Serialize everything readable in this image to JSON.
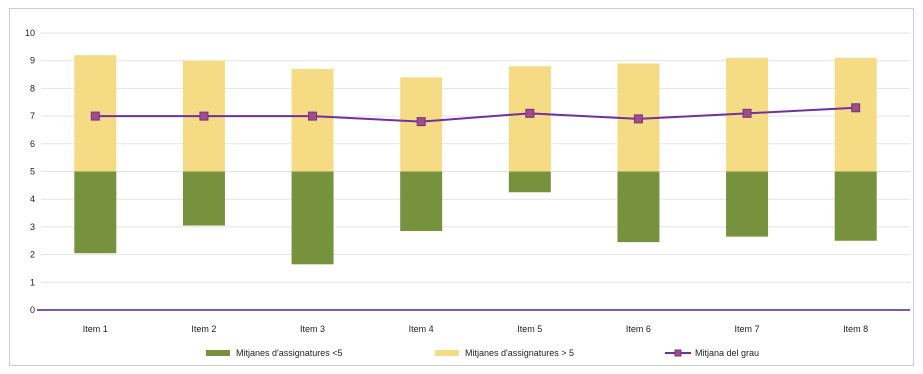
{
  "chart_data": {
    "type": "bar",
    "categories": [
      "Item 1",
      "Item 2",
      "Item 3",
      "Item 4",
      "Item 5",
      "Item 6",
      "Item 7",
      "Item 8"
    ],
    "series": [
      {
        "name": "Mitjanes d'assignatures <5",
        "kind": "floating-bar",
        "low": [
          2.05,
          3.05,
          1.65,
          2.85,
          4.25,
          2.45,
          2.65,
          2.5
        ],
        "high": [
          5,
          5,
          5,
          5,
          5,
          5,
          5,
          5
        ]
      },
      {
        "name": "Mitjanes d'assignatures > 5",
        "kind": "floating-bar",
        "low": [
          5,
          5,
          5,
          5,
          5,
          5,
          5,
          5
        ],
        "high": [
          9.2,
          9.0,
          8.7,
          8.4,
          8.8,
          8.9,
          9.1,
          9.1
        ]
      },
      {
        "name": "Mitjana del grau",
        "kind": "line",
        "values": [
          7.0,
          7.0,
          7.0,
          6.8,
          7.1,
          6.9,
          7.1,
          7.3
        ]
      }
    ],
    "ylim": [
      0,
      10
    ],
    "yticks": [
      "0",
      "1",
      "2",
      "3",
      "4",
      "5",
      "6",
      "7",
      "8",
      "9",
      "10"
    ],
    "grid": true,
    "legend_position": "bottom",
    "colors": {
      "green": "#76923c",
      "yellow": "#f5dc84",
      "line": "#7030a0",
      "marker": "#a0507a",
      "axis": "#7d5aa6",
      "grid": "#e3e3e3"
    }
  }
}
